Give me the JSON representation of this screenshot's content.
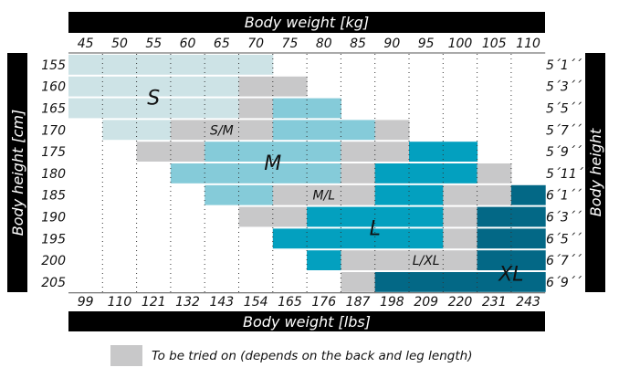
{
  "chart_data": {
    "type": "heatmap",
    "title_top": "Body weight [kg]",
    "title_bottom": "Body weight [lbs]",
    "ylabel_left": "Body height [cm]",
    "ylabel_right": "Body height",
    "x_kg": [
      "45",
      "50",
      "55",
      "60",
      "65",
      "70",
      "75",
      "80",
      "85",
      "90",
      "95",
      "100",
      "105",
      "110"
    ],
    "x_lbs": [
      "99",
      "110",
      "121",
      "132",
      "143",
      "154",
      "165",
      "176",
      "187",
      "198",
      "209",
      "220",
      "231",
      "243"
    ],
    "y_cm": [
      "155",
      "160",
      "165",
      "170",
      "175",
      "180",
      "185",
      "190",
      "195",
      "200",
      "205"
    ],
    "y_ft": [
      "5´1´´",
      "5´3´´",
      "5´5´´",
      "5´7´´",
      "5´9´´",
      "5´11´´",
      "6´1´´",
      "6´3´´",
      "6´5´´",
      "6´7´´",
      "6´9´´"
    ],
    "grid": [
      [
        "S",
        "S",
        "S",
        "S",
        "S",
        "S",
        "",
        "",
        "",
        "",
        "",
        "",
        "",
        ""
      ],
      [
        "S",
        "S",
        "S",
        "S",
        "S",
        "G",
        "G",
        "",
        "",
        "",
        "",
        "",
        "",
        ""
      ],
      [
        "S",
        "S",
        "S",
        "S",
        "S",
        "G",
        "M",
        "M",
        "",
        "",
        "",
        "",
        "",
        ""
      ],
      [
        "",
        "S",
        "S",
        "G",
        "G",
        "G",
        "M",
        "M",
        "M",
        "G",
        "",
        "",
        "",
        ""
      ],
      [
        "",
        "",
        "G",
        "G",
        "M",
        "M",
        "M",
        "M",
        "G",
        "G",
        "L",
        "L",
        "",
        ""
      ],
      [
        "",
        "",
        "",
        "M",
        "M",
        "M",
        "M",
        "M",
        "G",
        "L",
        "L",
        "L",
        "G",
        ""
      ],
      [
        "",
        "",
        "",
        "",
        "M",
        "M",
        "G",
        "G",
        "G",
        "L",
        "L",
        "G",
        "G",
        "XL"
      ],
      [
        "",
        "",
        "",
        "",
        "",
        "G",
        "G",
        "L",
        "L",
        "L",
        "L",
        "G",
        "XL",
        "XL"
      ],
      [
        "",
        "",
        "",
        "",
        "",
        "",
        "L",
        "L",
        "L",
        "L",
        "L",
        "G",
        "XL",
        "XL"
      ],
      [
        "",
        "",
        "",
        "",
        "",
        "",
        "",
        "L",
        "G",
        "G",
        "G",
        "G",
        "XL",
        "XL"
      ],
      [
        "",
        "",
        "",
        "",
        "",
        "",
        "",
        "",
        "G",
        "XL",
        "XL",
        "XL",
        "XL",
        "XL"
      ]
    ],
    "size_labels": [
      {
        "text": "S",
        "row": 1.5,
        "col": 2.5
      },
      {
        "text": "S/M",
        "row": 3,
        "col": 4.5
      },
      {
        "text": "M",
        "row": 4.5,
        "col": 6
      },
      {
        "text": "M/L",
        "row": 6,
        "col": 7.5
      },
      {
        "text": "L",
        "row": 7.5,
        "col": 9
      },
      {
        "text": "L/XL",
        "row": 9,
        "col": 10.5
      },
      {
        "text": "XL",
        "row": 9.6,
        "col": 13
      }
    ],
    "colors": {
      "S": "#cde3e6",
      "M": "#85cbd9",
      "L": "#03a0bf",
      "XL": "#036886",
      "G": "#c8c8c9"
    },
    "legend": {
      "color": "#c8c8c9",
      "text": "To be tried on (depends on the back and leg length)"
    }
  }
}
